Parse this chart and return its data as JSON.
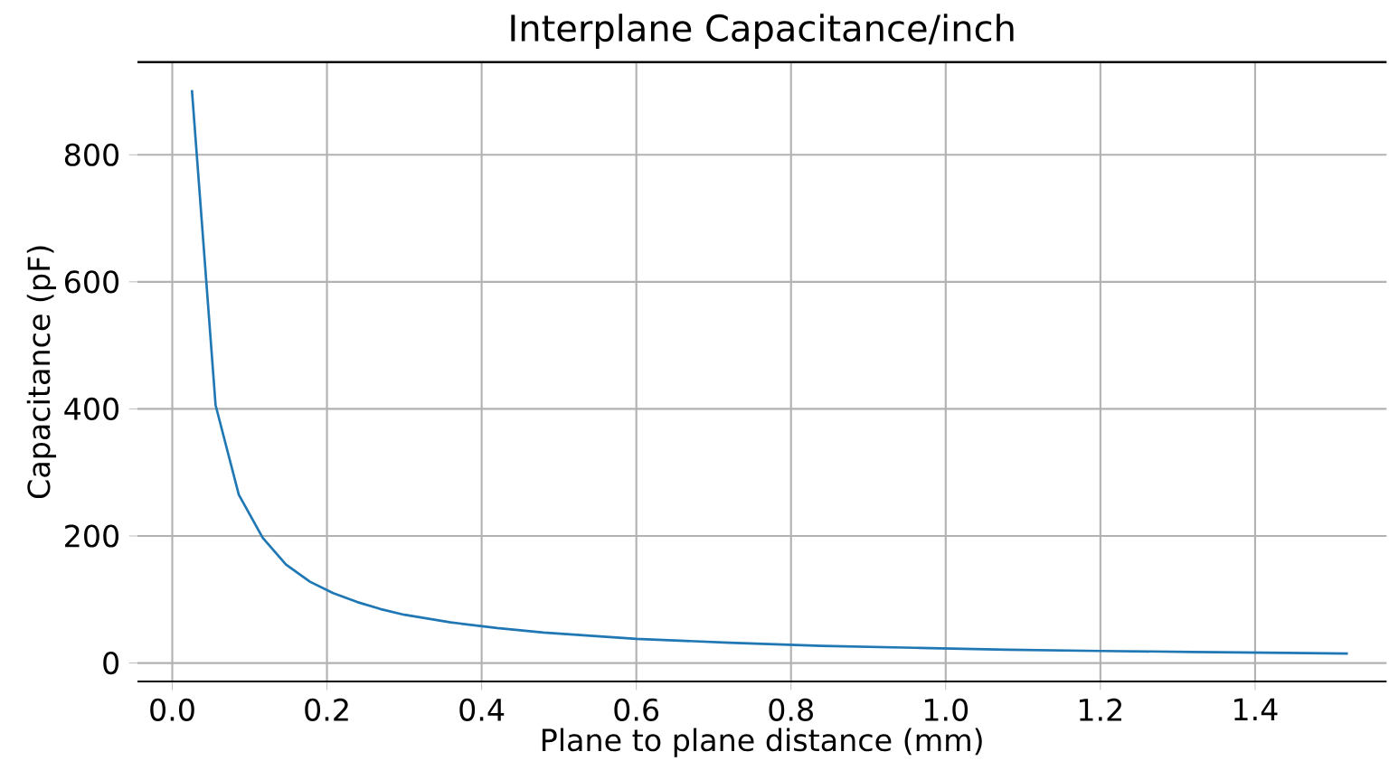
{
  "chart_data": {
    "type": "line",
    "title": "Interplane Capacitance/inch",
    "xlabel": "Plane to plane distance (mm)",
    "ylabel": "Capacitance (pF)",
    "x": [
      0.0254,
      0.056,
      0.086,
      0.117,
      0.147,
      0.178,
      0.208,
      0.239,
      0.269,
      0.3,
      0.36,
      0.42,
      0.48,
      0.6,
      0.72,
      0.84,
      0.96,
      1.08,
      1.2,
      1.32,
      1.44,
      1.52
    ],
    "series": [
      {
        "color": "#1f77b4",
        "values": [
          902,
          406,
          265,
          197,
          155,
          128,
          110,
          96,
          85,
          76,
          64,
          55,
          48,
          38,
          32,
          27,
          24,
          21,
          19,
          17.5,
          16,
          15
        ]
      }
    ],
    "xlim": [
      -0.045,
      1.57
    ],
    "ylim": [
      -29,
      946
    ],
    "xticks": [
      {
        "value": 0,
        "label": "0.0"
      },
      0.2,
      0.4,
      0.6,
      0.8,
      {
        "value": 1,
        "label": "1.0"
      },
      1.2,
      1.4
    ],
    "yticks": [
      0,
      200,
      400,
      600,
      800
    ],
    "grid": true,
    "legend": false,
    "marker": "none",
    "line_style": "solid"
  }
}
